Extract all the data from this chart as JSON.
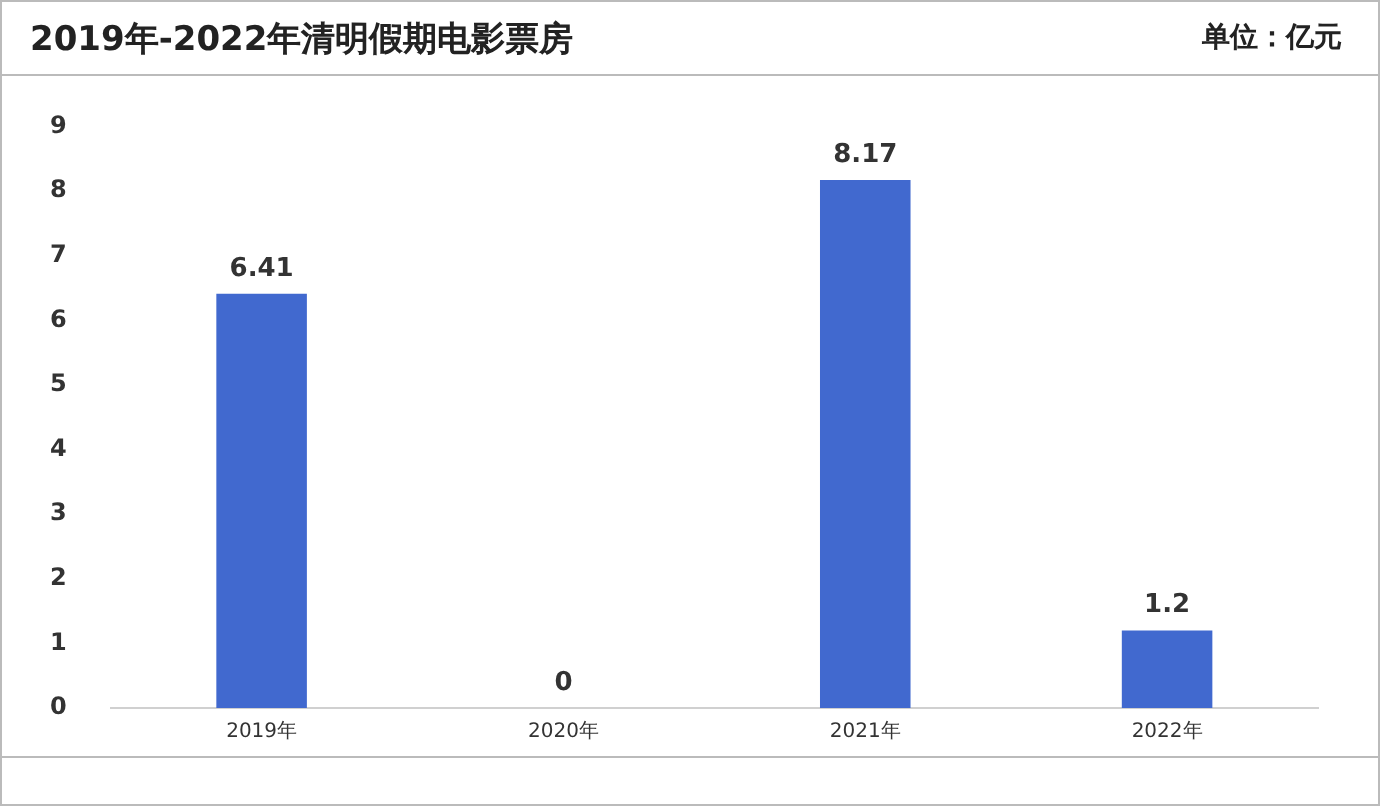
{
  "chart_data": {
    "type": "bar",
    "title": "2019年-2022年清明假期电影票房",
    "subtitle": "单位：亿元",
    "categories": [
      "2019年",
      "2020年",
      "2021年",
      "2022年"
    ],
    "values": [
      6.41,
      0,
      8.17,
      1.2
    ],
    "color": "#4169cf",
    "ylim": [
      0,
      9
    ],
    "yticks": [
      0,
      1,
      2,
      3,
      4,
      5,
      6,
      7,
      8,
      9
    ],
    "grid": false,
    "data_labels": true
  }
}
